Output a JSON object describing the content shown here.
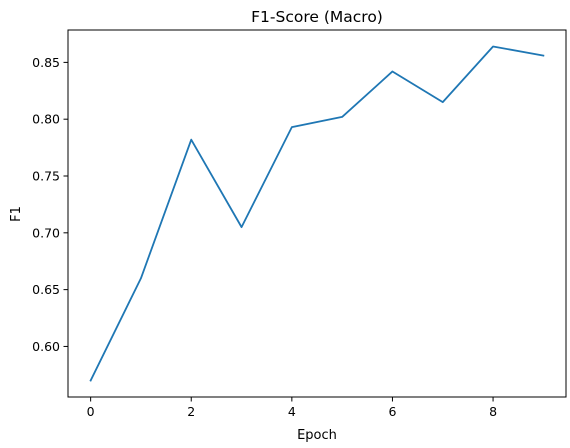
{
  "chart_data": {
    "type": "line",
    "title": "F1-Score (Macro)",
    "xlabel": "Epoch",
    "ylabel": "F1",
    "x": [
      0,
      1,
      2,
      3,
      4,
      5,
      6,
      7,
      8,
      9
    ],
    "series": [
      {
        "values": [
          0.57,
          0.66,
          0.782,
          0.705,
          0.793,
          0.802,
          0.842,
          0.815,
          0.864,
          0.856
        ],
        "color": "#1f77b4"
      }
    ],
    "xlim": [
      -0.45,
      9.45
    ],
    "ylim": [
      0.5555,
      0.8785
    ],
    "xticks": [
      0,
      2,
      4,
      6,
      8
    ],
    "xtick_labels": [
      "0",
      "2",
      "4",
      "6",
      "8"
    ],
    "yticks": [
      0.6,
      0.65,
      0.7,
      0.75,
      0.8,
      0.85
    ],
    "ytick_labels": [
      "0.60",
      "0.65",
      "0.70",
      "0.75",
      "0.80",
      "0.85"
    ],
    "grid": false,
    "legend": "none"
  }
}
